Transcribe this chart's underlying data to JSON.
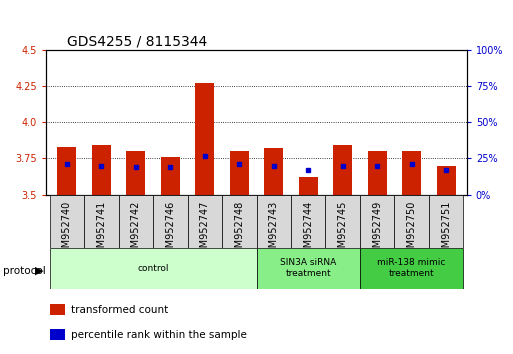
{
  "title": "GDS4255 / 8115344",
  "samples": [
    "GSM952740",
    "GSM952741",
    "GSM952742",
    "GSM952746",
    "GSM952747",
    "GSM952748",
    "GSM952743",
    "GSM952744",
    "GSM952745",
    "GSM952749",
    "GSM952750",
    "GSM952751"
  ],
  "transformed_count": [
    3.83,
    3.84,
    3.8,
    3.76,
    4.27,
    3.8,
    3.82,
    3.62,
    3.84,
    3.8,
    3.8,
    3.7
  ],
  "percentile_rank": [
    21,
    20,
    19,
    19,
    27,
    21,
    20,
    17,
    20,
    20,
    21,
    17
  ],
  "ylim_left": [
    3.5,
    4.5
  ],
  "ylim_right": [
    0,
    100
  ],
  "yticks_left": [
    3.5,
    3.75,
    4.0,
    4.25,
    4.5
  ],
  "yticks_right": [
    0,
    25,
    50,
    75,
    100
  ],
  "ytick_labels_right": [
    "0%",
    "25%",
    "50%",
    "75%",
    "100%"
  ],
  "bar_color": "#cc2200",
  "dot_color": "#0000cc",
  "grid_color": "#000000",
  "protocol_groups": [
    {
      "label": "control",
      "start": 0,
      "end": 5,
      "color": "#ccffcc"
    },
    {
      "label": "SIN3A siRNA\ntreatment",
      "start": 6,
      "end": 8,
      "color": "#88ee88"
    },
    {
      "label": "miR-138 mimic\ntreatment",
      "start": 9,
      "end": 11,
      "color": "#44cc44"
    }
  ],
  "legend_items": [
    {
      "label": "transformed count",
      "color": "#cc2200"
    },
    {
      "label": "percentile rank within the sample",
      "color": "#0000cc"
    }
  ],
  "protocol_label": "protocol",
  "bar_width": 0.55,
  "background_color": "#ffffff",
  "plot_bg_color": "#ffffff",
  "title_fontsize": 10,
  "tick_fontsize": 7,
  "label_fontsize": 7.5
}
